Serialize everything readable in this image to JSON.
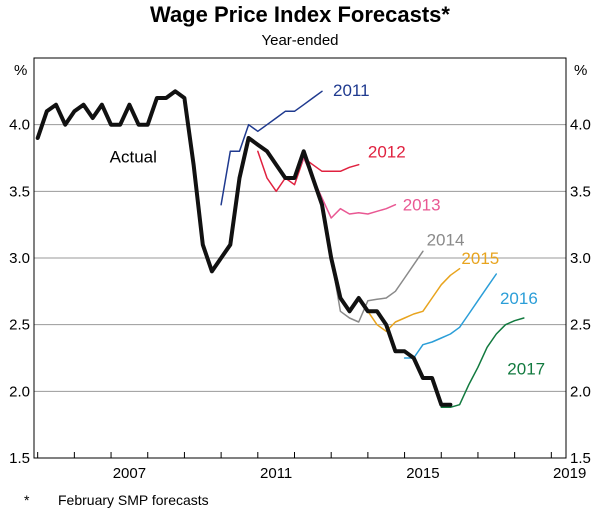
{
  "chart_data": {
    "type": "line",
    "title": "Wage Price Index Forecasts*",
    "subtitle": "Year-ended",
    "ylabel_left": "%",
    "ylabel_right": "%",
    "ylim": [
      1.5,
      4.5
    ],
    "yticks": [
      "1.5",
      "2.0",
      "2.5",
      "3.0",
      "3.5",
      "4.0"
    ],
    "xlim": [
      2004.9,
      2019.4
    ],
    "xticks": [
      "2007",
      "2011",
      "2015",
      "2019"
    ],
    "grid": true,
    "footnote_marker": "*",
    "footnote": "February SMP forecasts",
    "series": [
      {
        "name": "Actual",
        "color": "#111111",
        "style": "thick",
        "x": [
          2005.0,
          2005.25,
          2005.5,
          2005.75,
          2006.0,
          2006.25,
          2006.5,
          2006.75,
          2007.0,
          2007.25,
          2007.5,
          2007.75,
          2008.0,
          2008.25,
          2008.5,
          2008.75,
          2009.0,
          2009.25,
          2009.5,
          2009.75,
          2010.0,
          2010.25,
          2010.5,
          2010.75,
          2011.0,
          2011.25,
          2011.5,
          2011.75,
          2012.0,
          2012.25,
          2012.5,
          2012.75,
          2013.0,
          2013.25,
          2013.5,
          2013.75,
          2014.0,
          2014.25,
          2014.5,
          2014.75,
          2015.0,
          2015.25,
          2015.5,
          2015.75,
          2016.0,
          2016.25
        ],
        "values": [
          3.9,
          4.1,
          4.15,
          4.0,
          4.1,
          4.15,
          4.05,
          4.15,
          4.0,
          4.0,
          4.15,
          4.0,
          4.0,
          4.2,
          4.2,
          4.25,
          4.2,
          3.7,
          3.1,
          2.9,
          3.0,
          3.1,
          3.6,
          3.9,
          3.85,
          3.8,
          3.7,
          3.6,
          3.6,
          3.8,
          3.6,
          3.4,
          3.0,
          2.7,
          2.6,
          2.7,
          2.6,
          2.6,
          2.5,
          2.3,
          2.3,
          2.25,
          2.1,
          2.1,
          1.9,
          1.9
        ]
      },
      {
        "name": "2011",
        "color": "#1f3a8f",
        "x": [
          2010.0,
          2010.25,
          2010.5,
          2010.75,
          2011.0,
          2011.25,
          2011.5,
          2011.75,
          2012.0,
          2012.25,
          2012.5,
          2012.75
        ],
        "values": [
          3.4,
          3.8,
          3.8,
          4.0,
          3.95,
          4.0,
          4.05,
          4.1,
          4.1,
          4.15,
          4.2,
          4.25
        ]
      },
      {
        "name": "2012",
        "color": "#e0213f",
        "x": [
          2011.0,
          2011.25,
          2011.5,
          2011.75,
          2012.0,
          2012.25,
          2012.5,
          2012.75,
          2013.0,
          2013.25,
          2013.5,
          2013.75
        ],
        "values": [
          3.8,
          3.6,
          3.5,
          3.6,
          3.55,
          3.75,
          3.7,
          3.65,
          3.65,
          3.65,
          3.68,
          3.7
        ]
      },
      {
        "name": "2013",
        "color": "#e95893",
        "x": [
          2012.0,
          2012.25,
          2012.5,
          2012.75,
          2013.0,
          2013.25,
          2013.5,
          2013.75,
          2014.0,
          2014.25,
          2014.5,
          2014.75
        ],
        "values": [
          3.6,
          3.75,
          3.6,
          3.45,
          3.3,
          3.37,
          3.33,
          3.34,
          3.33,
          3.35,
          3.37,
          3.4
        ]
      },
      {
        "name": "2014",
        "color": "#8a8a8a",
        "x": [
          2013.0,
          2013.25,
          2013.5,
          2013.75,
          2014.0,
          2014.25,
          2014.5,
          2014.75,
          2015.0,
          2015.25,
          2015.5
        ],
        "values": [
          3.0,
          2.6,
          2.55,
          2.52,
          2.68,
          2.69,
          2.7,
          2.75,
          2.85,
          2.95,
          3.05
        ]
      },
      {
        "name": "2015",
        "color": "#e8a41e",
        "x": [
          2014.0,
          2014.25,
          2014.5,
          2014.75,
          2015.0,
          2015.25,
          2015.5,
          2015.75,
          2016.0,
          2016.25,
          2016.5
        ],
        "values": [
          2.6,
          2.5,
          2.45,
          2.52,
          2.55,
          2.58,
          2.6,
          2.7,
          2.8,
          2.87,
          2.92
        ]
      },
      {
        "name": "2016",
        "color": "#2b9ed8",
        "x": [
          2015.0,
          2015.25,
          2015.5,
          2015.75,
          2016.0,
          2016.25,
          2016.5,
          2016.75,
          2017.0,
          2017.25,
          2017.5
        ],
        "values": [
          2.25,
          2.25,
          2.35,
          2.37,
          2.4,
          2.43,
          2.48,
          2.58,
          2.68,
          2.78,
          2.88
        ]
      },
      {
        "name": "2017",
        "color": "#127a3f",
        "x": [
          2016.0,
          2016.25,
          2016.5,
          2016.75,
          2017.0,
          2017.25,
          2017.5,
          2017.75,
          2018.0,
          2018.25
        ],
        "values": [
          1.88,
          1.88,
          1.9,
          2.05,
          2.18,
          2.33,
          2.43,
          2.5,
          2.53,
          2.55
        ]
      }
    ],
    "labels": [
      {
        "text": "Actual",
        "x": 2008.25,
        "y": 3.76,
        "color": "#000000",
        "anchor": "end"
      },
      {
        "text": "2011",
        "x": 2013.05,
        "y": 4.26,
        "color": "#1f3a8f",
        "anchor": "start"
      },
      {
        "text": "2012",
        "x": 2014.0,
        "y": 3.8,
        "color": "#e0213f",
        "anchor": "start"
      },
      {
        "text": "2013",
        "x": 2014.95,
        "y": 3.4,
        "color": "#e95893",
        "anchor": "start"
      },
      {
        "text": "2014",
        "x": 2015.6,
        "y": 3.14,
        "color": "#8a8a8a",
        "anchor": "start"
      },
      {
        "text": "2015",
        "x": 2016.55,
        "y": 3.0,
        "color": "#e8a41e",
        "anchor": "start"
      },
      {
        "text": "2016",
        "x": 2017.6,
        "y": 2.7,
        "color": "#2b9ed8",
        "anchor": "start"
      },
      {
        "text": "2017",
        "x": 2017.8,
        "y": 2.17,
        "color": "#127a3f",
        "anchor": "start"
      }
    ]
  }
}
